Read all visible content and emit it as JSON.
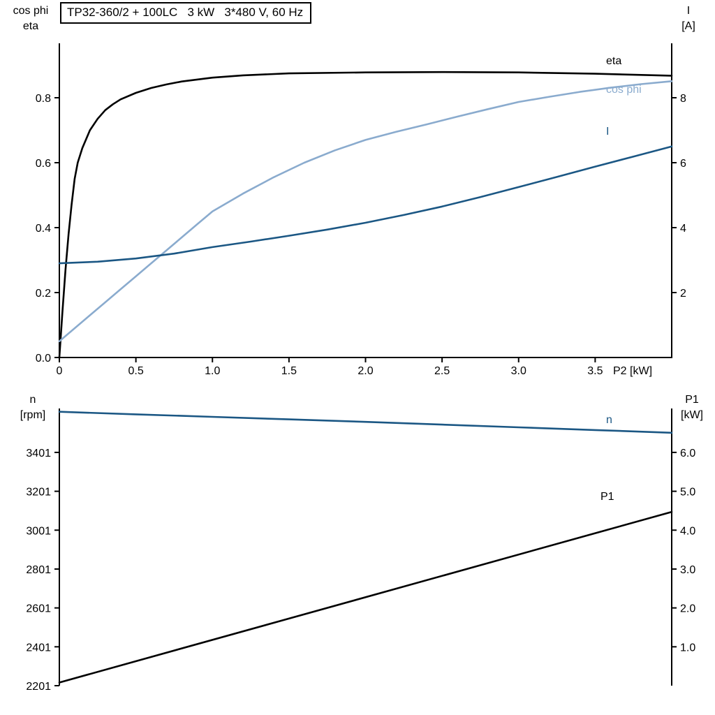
{
  "title_box": {
    "text": "TP32-360/2 + 100LC   3 kW   3*480 V, 60 Hz"
  },
  "chart_data": [
    {
      "type": "line",
      "title": "TP32-360/2 + 100LC   3 kW   3*480 V, 60 Hz",
      "x_label": "P2 [kW]",
      "x_range": [
        0,
        4
      ],
      "x_ticks": [
        0,
        0.5,
        1,
        1.5,
        2,
        2.5,
        3,
        3.5
      ],
      "x_tick_labels": [
        "0",
        "0.5",
        "1.0",
        "1.5",
        "2.0",
        "2.5",
        "3.0",
        "3.5"
      ],
      "grid": "off",
      "left_axis": {
        "title": [
          "cos phi",
          "eta"
        ],
        "range": [
          0,
          0.9677
        ],
        "ticks": [
          0,
          0.2,
          0.4,
          0.6,
          0.8
        ],
        "tick_labels": [
          "0.0",
          "0.2",
          "0.4",
          "0.6",
          "0.8"
        ]
      },
      "right_axis": {
        "title": [
          "I",
          "[A]"
        ],
        "range": [
          0,
          9.677
        ],
        "ticks": [
          2,
          4,
          6,
          8
        ],
        "tick_labels": [
          "2",
          "4",
          "6",
          "8"
        ]
      },
      "series": [
        {
          "name": "eta",
          "axis": "left",
          "color": "#000000",
          "x": [
            0,
            0.02,
            0.04,
            0.06,
            0.08,
            0.1,
            0.12,
            0.15,
            0.2,
            0.25,
            0.3,
            0.35,
            0.4,
            0.5,
            0.6,
            0.7,
            0.8,
            1.0,
            1.2,
            1.5,
            2.0,
            2.5,
            3.0,
            3.5,
            4.0
          ],
          "values": [
            0,
            0.14,
            0.27,
            0.38,
            0.47,
            0.55,
            0.6,
            0.645,
            0.7,
            0.735,
            0.762,
            0.78,
            0.795,
            0.815,
            0.83,
            0.841,
            0.85,
            0.862,
            0.869,
            0.875,
            0.878,
            0.879,
            0.878,
            0.874,
            0.868
          ]
        },
        {
          "name": "cos phi",
          "axis": "left",
          "color": "#8aabce",
          "x": [
            0,
            0.1,
            0.2,
            0.3,
            0.4,
            0.5,
            0.6,
            0.7,
            0.8,
            0.9,
            1.0,
            1.2,
            1.4,
            1.6,
            1.8,
            2.0,
            2.2,
            2.4,
            2.6,
            2.8,
            3.0,
            3.2,
            3.4,
            3.6,
            3.8,
            4.0
          ],
          "values": [
            0.05,
            0.09,
            0.13,
            0.17,
            0.21,
            0.25,
            0.29,
            0.33,
            0.37,
            0.41,
            0.45,
            0.505,
            0.555,
            0.6,
            0.638,
            0.67,
            0.695,
            0.718,
            0.742,
            0.765,
            0.787,
            0.803,
            0.818,
            0.831,
            0.842,
            0.851
          ]
        },
        {
          "name": "I",
          "axis": "right",
          "color": "#1b5784",
          "x": [
            0,
            0.25,
            0.5,
            0.75,
            1.0,
            1.25,
            1.5,
            1.75,
            2.0,
            2.25,
            2.5,
            2.75,
            3.0,
            3.25,
            3.5,
            3.75,
            4.0
          ],
          "values": [
            2.9,
            2.95,
            3.05,
            3.2,
            3.4,
            3.57,
            3.75,
            3.94,
            4.15,
            4.39,
            4.65,
            4.94,
            5.25,
            5.56,
            5.88,
            6.19,
            6.5
          ]
        }
      ]
    },
    {
      "type": "line",
      "x_range": [
        0,
        4
      ],
      "grid": "off",
      "left_axis": {
        "title": [
          "n",
          "[rpm]"
        ],
        "range": [
          2201,
          3627
        ],
        "ticks": [
          2201,
          2401,
          2601,
          2801,
          3001,
          3201,
          3401
        ],
        "tick_labels": [
          "2201",
          "2401",
          "2601",
          "2801",
          "3001",
          "3201",
          "3401"
        ]
      },
      "right_axis": {
        "title": [
          "P1",
          "[kW]"
        ],
        "range": [
          0,
          7.13
        ],
        "ticks": [
          1,
          2,
          3,
          4,
          5,
          6
        ],
        "tick_labels": [
          "1.0",
          "2.0",
          "3.0",
          "4.0",
          "5.0",
          "6.0"
        ]
      },
      "series": [
        {
          "name": "n",
          "axis": "left",
          "color": "#1b5784",
          "x": [
            0,
            0.5,
            1,
            1.5,
            2,
            2.5,
            3,
            3.5,
            4
          ],
          "values": [
            3610,
            3597,
            3584,
            3571,
            3558,
            3544,
            3530,
            3516,
            3502
          ]
        },
        {
          "name": "P1",
          "axis": "right",
          "color": "#000000",
          "x": [
            0,
            4
          ],
          "values": [
            0.08,
            4.47
          ]
        }
      ]
    }
  ]
}
